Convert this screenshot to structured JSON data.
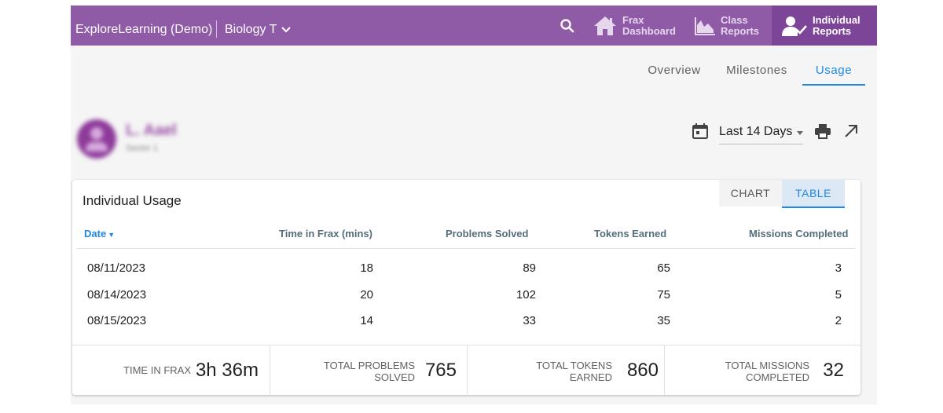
{
  "header": {
    "brand": "ExploreLearning (Demo)",
    "class_name": "Biology T",
    "nav": {
      "frax": [
        "Frax",
        "Dashboard"
      ],
      "class": [
        "Class",
        "Reports"
      ],
      "individual": [
        "Individual",
        "Reports"
      ]
    },
    "active_nav": "individual"
  },
  "tabs": {
    "overview": "Overview",
    "milestones": "Milestones",
    "usage": "Usage",
    "active": "usage"
  },
  "student": {
    "name": "L. Aael",
    "subtitle": "Sector 1"
  },
  "controls": {
    "date_range": "Last 14 Days"
  },
  "card": {
    "title": "Individual Usage",
    "view_toggle": {
      "chart": "CHART",
      "table": "TABLE",
      "active": "table"
    },
    "columns": {
      "date": "Date",
      "time": "Time in Frax (mins)",
      "problems": "Problems Solved",
      "tokens": "Tokens Earned",
      "missions": "Missions Completed"
    },
    "rows": [
      {
        "date": "08/11/2023",
        "time": "18",
        "problems": "89",
        "tokens": "65",
        "missions": "3"
      },
      {
        "date": "08/14/2023",
        "time": "20",
        "problems": "102",
        "tokens": "75",
        "missions": "5"
      },
      {
        "date": "08/15/2023",
        "time": "14",
        "problems": "33",
        "tokens": "35",
        "missions": "2"
      }
    ],
    "summary": {
      "time": {
        "label": "TIME IN FRAX",
        "value": "3h 36m"
      },
      "problems": {
        "label1": "TOTAL PROBLEMS",
        "label2": "SOLVED",
        "value": "765"
      },
      "tokens": {
        "label1": "TOTAL TOKENS",
        "label2": "EARNED",
        "value": "860"
      },
      "missions": {
        "label1": "TOTAL MISSIONS",
        "label2": "COMPLETED",
        "value": "32"
      }
    }
  },
  "colors": {
    "header_bg": "#8f5aa6",
    "active_nav_bg": "#7d4598",
    "accent": "#1e88e5"
  }
}
